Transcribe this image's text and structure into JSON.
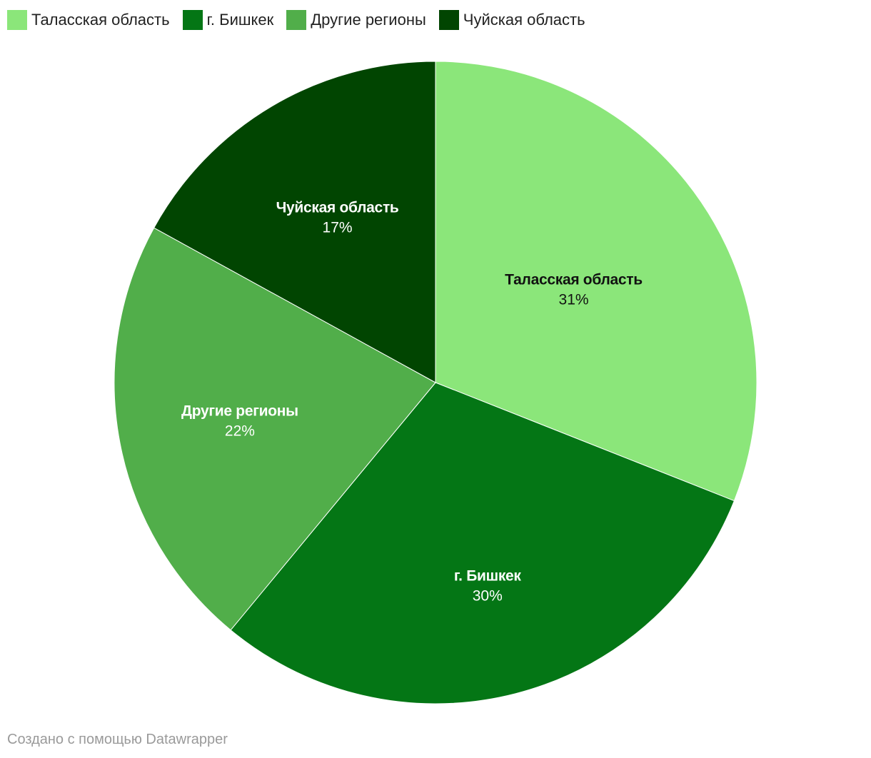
{
  "chart_data": {
    "type": "pie",
    "start_angle": "12 o'clock, clockwise",
    "slices": [
      {
        "label": "Таласская область",
        "value": 31,
        "value_label": "31%",
        "color": "#8be67a",
        "label_color": "#111111"
      },
      {
        "label": "г. Бишкек",
        "value": 30,
        "value_label": "30%",
        "color": "#047615",
        "label_color": "#ffffff"
      },
      {
        "label": "Другие регионы",
        "value": 22,
        "value_label": "22%",
        "color": "#51ae4a",
        "label_color": "#ffffff"
      },
      {
        "label": "Чуйская область",
        "value": 17,
        "value_label": "17%",
        "color": "#014501",
        "label_color": "#ffffff"
      }
    ],
    "legend": {
      "placement": "top-left",
      "items": [
        {
          "label": "Таласская область",
          "color": "#8be67a"
        },
        {
          "label": "г. Бишкек",
          "color": "#047615"
        },
        {
          "label": "Другие регионы",
          "color": "#51ae4a"
        },
        {
          "label": "Чуйская область",
          "color": "#014501"
        }
      ]
    }
  },
  "footer": {
    "credit": "Создано с помощью Datawrapper"
  }
}
